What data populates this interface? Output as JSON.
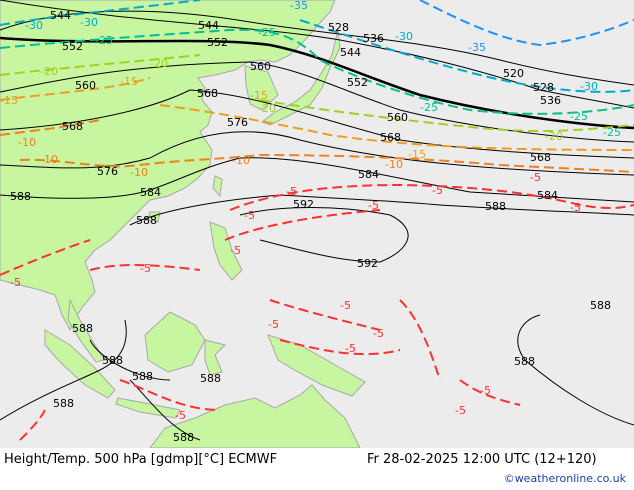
{
  "footer": {
    "title": "Height/Temp. 500 hPa [gdmp][°C] ECMWF",
    "datetime": "Fr 28-02-2025 12:00 UTC (12+120)",
    "credit": "©weatheronline.co.uk"
  },
  "colors": {
    "land": "#c8f5a0",
    "sea": "#ececec",
    "border": "#a8a8a8",
    "height": "#000000",
    "t_m35": "#1e90ff",
    "t_m30": "#00aacc",
    "t_m25": "#00c090",
    "t_m20": "#a0d020",
    "t_m15": "#e8a020",
    "t_m10": "#f08020",
    "t_m5": "#ff3030"
  },
  "height_labels": [
    "544",
    "544",
    "528",
    "552",
    "552",
    "536",
    "544",
    "560",
    "560",
    "552",
    "520",
    "528",
    "536",
    "568",
    "568",
    "560",
    "568",
    "576",
    "576",
    "568",
    "584",
    "584",
    "584",
    "592",
    "588",
    "588",
    "592",
    "588",
    "588",
    "588",
    "588",
    "588",
    "588",
    "588",
    "588",
    "588"
  ],
  "temp_labels": [
    "-30",
    "-30",
    "-35",
    "-30",
    "-35",
    "-25",
    "-25",
    "-25",
    "-20",
    "-20",
    "-25",
    "-20",
    "-15",
    "-15",
    "-15",
    "-10",
    "-10",
    "-10",
    "-10",
    "-10",
    "-5",
    "-5",
    "-5",
    "-5",
    "-5",
    "-5",
    "-5",
    "-5",
    "-5",
    "-5",
    "-5",
    "-5",
    "-5",
    "-5",
    "-30",
    "-25",
    "-20",
    "-15",
    "-5",
    "-5"
  ]
}
